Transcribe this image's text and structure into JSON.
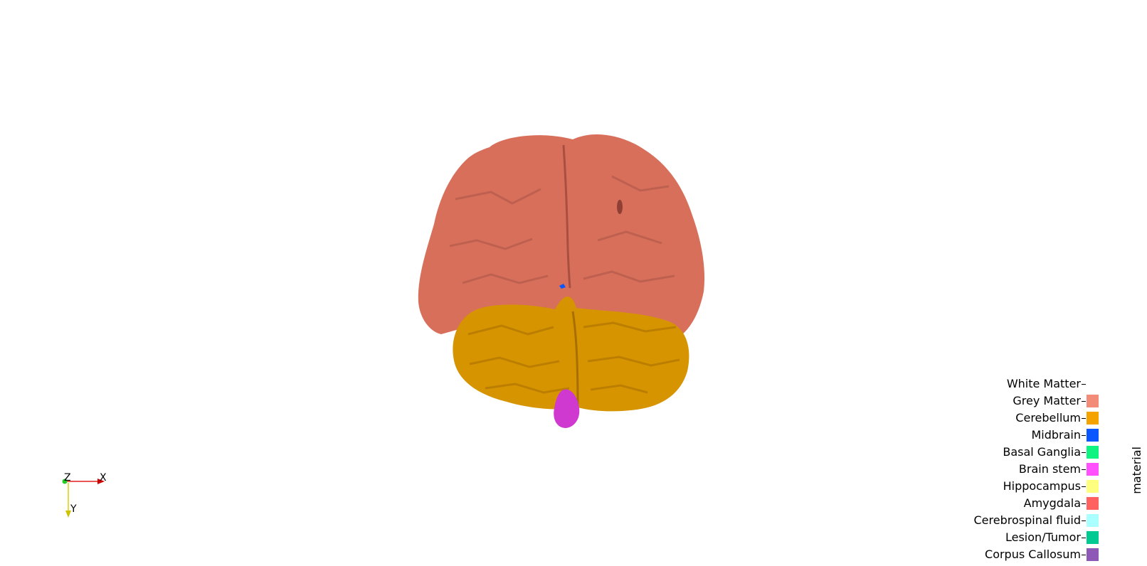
{
  "axes": {
    "x_label": "X",
    "y_label": "Y",
    "z_label": "Z"
  },
  "legend": {
    "title": "material",
    "items": [
      {
        "label": "White Matter",
        "color": ""
      },
      {
        "label": "Grey Matter",
        "color": "#f28b77"
      },
      {
        "label": "Cerebellum",
        "color": "#f5a300"
      },
      {
        "label": "Midbrain",
        "color": "#0a57ff"
      },
      {
        "label": "Basal Ganglia",
        "color": "#0ff380"
      },
      {
        "label": "Brain stem",
        "color": "#ff4fff"
      },
      {
        "label": "Hippocampus",
        "color": "#ffff7f"
      },
      {
        "label": "Amygdala",
        "color": "#ff6161"
      },
      {
        "label": "Cerebrospinal fluid",
        "color": "#aaffff"
      },
      {
        "label": "Lesion/Tumor",
        "color": "#00c991"
      },
      {
        "label": "Corpus Callosum",
        "color": "#8e58b7"
      }
    ]
  },
  "colors": {
    "cerebrum": "#d86f5b",
    "cerebrum_shade": "#b45a4a",
    "cerebellum": "#d69400",
    "cerebellum_shade": "#b97b00",
    "brain_stem": "#cf39cf"
  }
}
